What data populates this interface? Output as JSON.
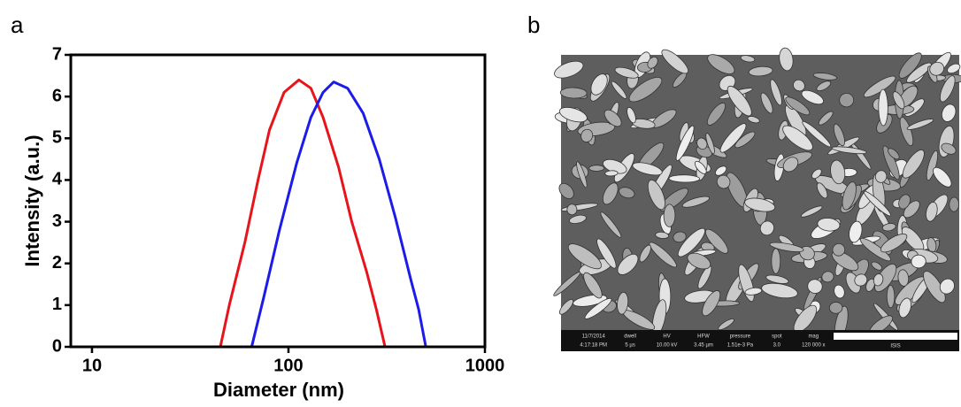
{
  "chart_data": {
    "type": "line",
    "panel_label": "a",
    "xlabel": "Diameter (nm)",
    "ylabel": "Intensity (a.u.)",
    "xscale": "log",
    "xlim": [
      7.8,
      1000
    ],
    "xticks": [
      10,
      100,
      1000
    ],
    "ylim": [
      0,
      7
    ],
    "yticks": [
      0,
      1,
      2,
      3,
      4,
      5,
      6,
      7
    ],
    "series": [
      {
        "color": "#e8141c",
        "x": [
          10,
          45,
          50,
          60,
          70,
          80,
          95,
          113,
          130,
          150,
          180,
          210,
          250,
          280,
          310,
          1000
        ],
        "values": [
          0,
          0,
          1,
          2.5,
          4,
          5.2,
          6.1,
          6.4,
          6.2,
          5.5,
          4.3,
          3.0,
          1.8,
          0.9,
          0,
          0
        ]
      },
      {
        "color": "#1c1ce8",
        "x": [
          10,
          65,
          75,
          90,
          110,
          130,
          150,
          170,
          200,
          240,
          290,
          350,
          420,
          460,
          500,
          1000
        ],
        "values": [
          0,
          0,
          1.2,
          2.8,
          4.4,
          5.5,
          6.1,
          6.35,
          6.2,
          5.6,
          4.5,
          3.1,
          1.6,
          0.9,
          0,
          0
        ]
      }
    ]
  },
  "image": {
    "panel_label": "b",
    "info_bar": [
      {
        "label": "11/7/2014",
        "value": "4:17:18 PM"
      },
      {
        "label": "dwell",
        "value": "5 µs"
      },
      {
        "label": "HV",
        "value": "10.00 kV"
      },
      {
        "label": "HFW",
        "value": "3.45 µm"
      },
      {
        "label": "pressure",
        "value": "1.51e-3 Pa"
      },
      {
        "label": "spot",
        "value": "3.0"
      },
      {
        "label": "mag",
        "value": "120 000 x"
      }
    ],
    "scale_text": "ISIS"
  }
}
